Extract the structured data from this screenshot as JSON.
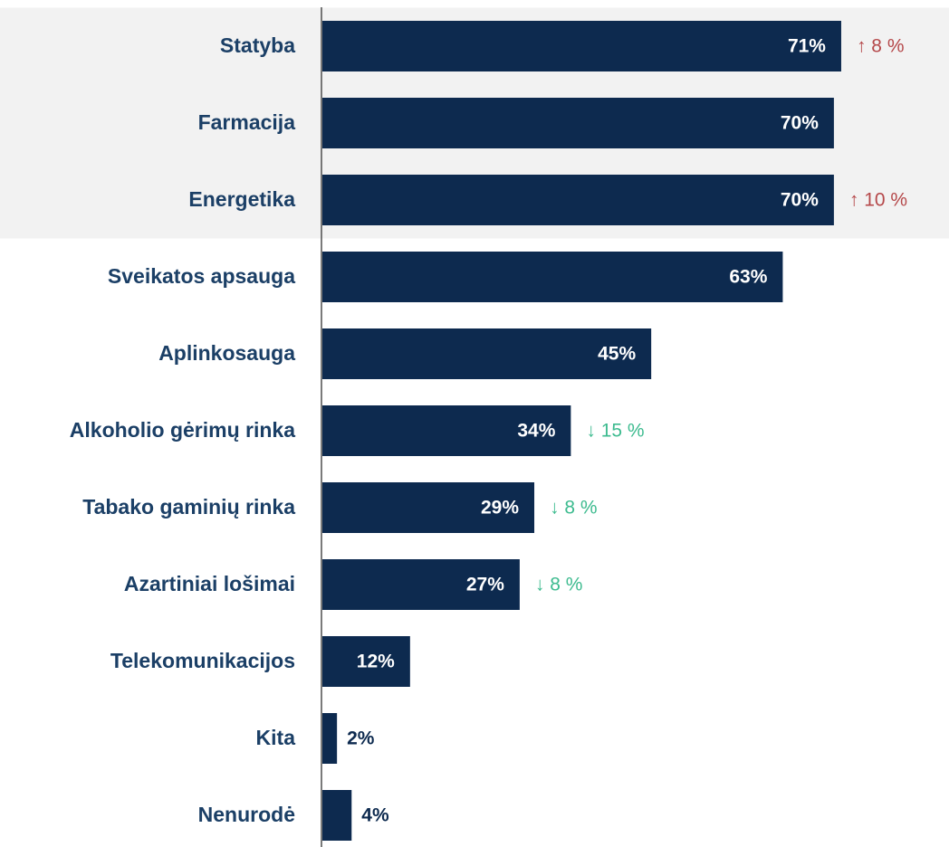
{
  "chart_data": {
    "type": "bar",
    "orientation": "horizontal",
    "categories": [
      "Statyba",
      "Farmacija",
      "Energetika",
      "Sveikatos apsauga",
      "Aplinkosauga",
      "Alkoholio gėrimų rinka",
      "Tabako gaminių rinka",
      "Azartiniai lošimai",
      "Telekomunikacijos",
      "Kita",
      "Nenurodė"
    ],
    "values": [
      71,
      70,
      70,
      63,
      45,
      34,
      29,
      27,
      12,
      2,
      4
    ],
    "value_labels": [
      "71%",
      "70%",
      "70%",
      "63%",
      "45%",
      "34%",
      "29%",
      "27%",
      "12%",
      "2%",
      "4%"
    ],
    "annotations": [
      "↑ 8 %",
      null,
      "↑ 10 %",
      null,
      null,
      "↓ 15 %",
      "↓ 8 %",
      "↓ 8 %",
      null,
      null,
      null
    ],
    "annotation_colors": [
      "#b5484a",
      null,
      "#b5484a",
      null,
      null,
      "#3dbb8f",
      "#3dbb8f",
      "#3dbb8f",
      null,
      null,
      null
    ],
    "highlighted": [
      true,
      true,
      true,
      false,
      false,
      false,
      false,
      false,
      false,
      false,
      false
    ],
    "color": "#0d2a4f",
    "highlight_color": "#f2f2f2",
    "xlim": [
      0,
      100
    ]
  }
}
